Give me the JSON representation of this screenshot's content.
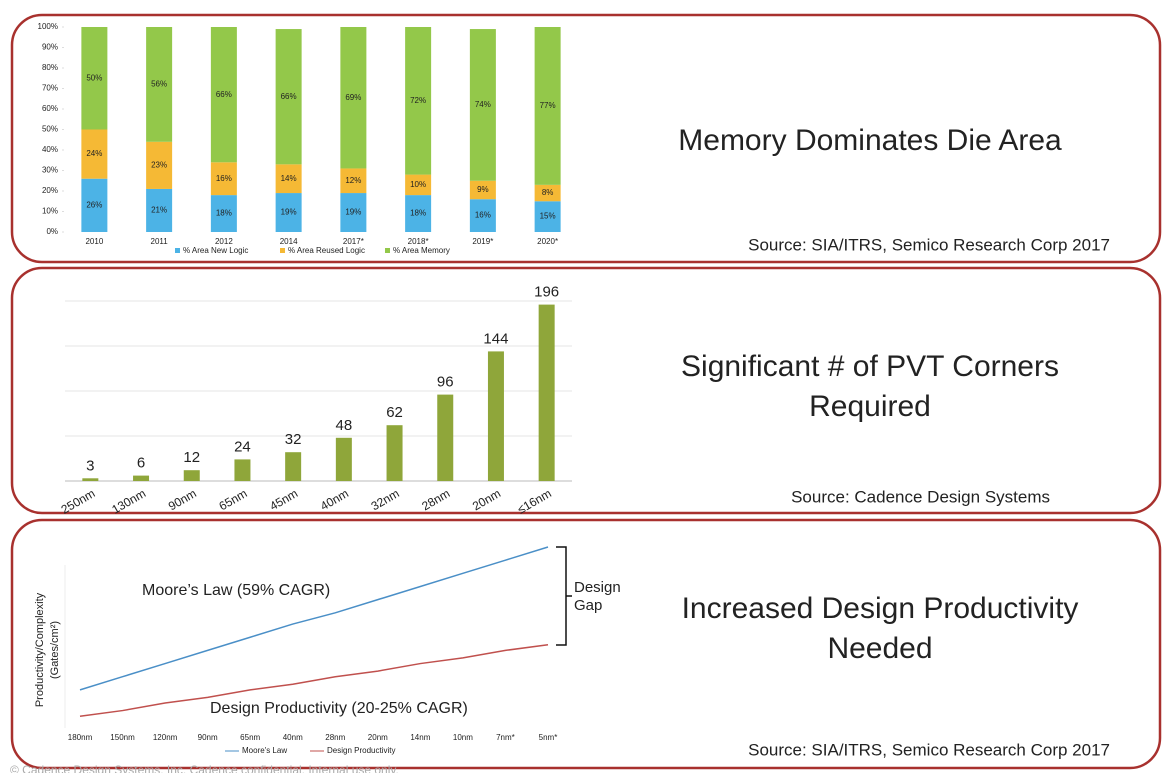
{
  "chart_data": [
    {
      "type": "stacked_bar",
      "headline": [
        "Memory Dominates Die Area"
      ],
      "source": "Source: SIA/ITRS, Semico Research Corp 2017",
      "categories": [
        "2010",
        "2011",
        "2012",
        "2014",
        "2017*",
        "2018*",
        "2019*",
        "2020*"
      ],
      "series": [
        {
          "name": "% Area New Logic",
          "color": "#4cb3e6",
          "values": [
            26,
            21,
            18,
            19,
            19,
            18,
            16,
            15
          ],
          "value_labels": [
            "26%",
            "21%",
            "18%",
            "19%",
            "19%",
            "18%",
            "16%",
            "15%"
          ]
        },
        {
          "name": "% Area Reused Logic",
          "color": "#f5b935",
          "values": [
            24,
            23,
            16,
            14,
            12,
            10,
            9,
            8
          ],
          "value_labels": [
            "24%",
            "23%",
            "16%",
            "14%",
            "12%",
            "10%",
            "9%",
            "8%"
          ]
        },
        {
          "name": "% Area Memory",
          "color": "#93c84a",
          "values": [
            50,
            56,
            66,
            66,
            69,
            72,
            74,
            77
          ],
          "value_labels": [
            "50%",
            "56%",
            "66%",
            "66%",
            "69%",
            "72%",
            "74%",
            "77%"
          ]
        }
      ],
      "ylim": [
        0,
        100
      ],
      "yticks": [
        {
          "value": 0,
          "label": "0%"
        },
        {
          "value": 10,
          "label": "10%"
        },
        {
          "value": 20,
          "label": "20%"
        },
        {
          "value": 30,
          "label": "30%"
        },
        {
          "value": 40,
          "label": "40%"
        },
        {
          "value": 50,
          "label": "50%"
        },
        {
          "value": 60,
          "label": "60%"
        },
        {
          "value": 70,
          "label": "70%"
        },
        {
          "value": 80,
          "label": "80%"
        },
        {
          "value": 90,
          "label": "90%"
        },
        {
          "value": 100,
          "label": "100%"
        }
      ]
    },
    {
      "type": "bar",
      "headline": [
        "Significant # of PVT Corners",
        "Required"
      ],
      "source": "Source: Cadence Design Systems",
      "categories": [
        "250nm",
        "130nm",
        "90nm",
        "65nm",
        "45nm",
        "40nm",
        "32nm",
        "28nm",
        "20nm",
        "≤16nm"
      ],
      "values": [
        3,
        6,
        12,
        24,
        32,
        48,
        62,
        96,
        144,
        196
      ],
      "color": "#8fa63a",
      "ylim": [
        0,
        200
      ],
      "yticks": [
        0,
        50,
        100,
        150,
        200
      ],
      "grid": true
    },
    {
      "type": "line",
      "headline": [
        "Increased Design Productivity",
        "Needed"
      ],
      "source": "Source: SIA/ITRS, Semico Research Corp 2017",
      "y_label": [
        "Productivity/Complexity",
        "(Gates/cm²)"
      ],
      "annotations": [
        "Moore’s Law (59% CAGR)",
        "Design Productivity (20-25% CAGR)",
        "Design",
        "Gap"
      ],
      "categories": [
        "180nm",
        "150nm",
        "120nm",
        "90nm",
        "65nm",
        "40nm",
        "28nm",
        "20nm",
        "14nm",
        "10nm",
        "7nm*",
        "5nm*"
      ],
      "series": [
        {
          "name": "Moore's Law",
          "color": "#4a8fc7",
          "values": [
            24,
            31,
            38,
            45,
            52,
            59,
            65,
            72,
            79,
            86,
            93,
            100
          ]
        },
        {
          "name": "Design Productivity",
          "color": "#c0504d",
          "values": [
            10,
            13,
            17,
            20,
            24,
            27,
            31,
            34,
            38,
            41,
            45,
            48
          ]
        }
      ],
      "ylim": [
        0,
        100
      ]
    }
  ],
  "footer": "© Cadence Design Systems, Inc. Cadence confidential. Internal use only."
}
